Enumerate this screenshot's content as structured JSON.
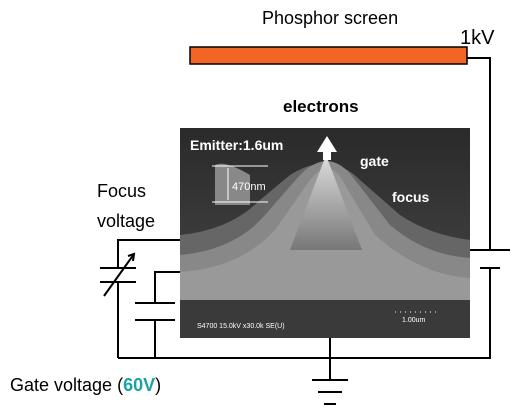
{
  "screen": {
    "label": "Phosphor screen",
    "voltage": "1kV"
  },
  "beam": "electrons",
  "sem": {
    "emitter": "Emitter:1.6um",
    "gate": "gate",
    "focus": "focus",
    "height": "470nm",
    "info": "S4700 15.0kV x30.0k SE(U)",
    "scale": "1.00um"
  },
  "focus_voltage": {
    "line1": "Focus",
    "line2": "voltage"
  },
  "gate_voltage": {
    "label": "Gate voltage (",
    "value": "60V",
    "close": ")"
  }
}
